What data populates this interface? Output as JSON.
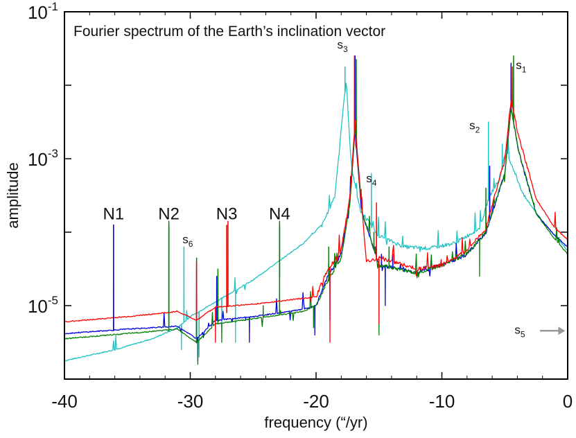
{
  "chart_data": {
    "type": "line",
    "title": "Fourier spectrum of the Earth’s inclination vector",
    "xlabel": "frequency (“/yr)",
    "ylabel": "amplitude",
    "xlim": [
      -40,
      0
    ],
    "ylim_log10": [
      -6,
      -1
    ],
    "x_ticks": [
      -40,
      -30,
      -20,
      -10,
      0
    ],
    "x_tick_labels": [
      "-40",
      "-30",
      "-20",
      "-10",
      "0"
    ],
    "y_ticks": [
      {
        "base": "10",
        "exp": "-1",
        "value": -1
      },
      {
        "base": "10",
        "exp": "-3",
        "value": -3
      },
      {
        "base": "10",
        "exp": "-5",
        "value": -5
      }
    ],
    "grid": false,
    "colors": {
      "red": "#ff0000",
      "blue": "#0000e0",
      "green": "#008000",
      "cyan": "#22c0c0",
      "axis": "#000000",
      "arrow": "#999999"
    },
    "series": [
      {
        "name": "blue",
        "color": "#0000e0",
        "background": [
          [
            -40,
            -5.38
          ],
          [
            -35,
            -5.32
          ],
          [
            -31,
            -5.28
          ],
          [
            -29.5,
            -5.45
          ],
          [
            -28,
            -5.2
          ],
          [
            -25,
            -5.15
          ],
          [
            -21,
            -5.05
          ],
          [
            -20,
            -5.0
          ],
          [
            -19.2,
            -4.65
          ],
          [
            -18,
            -4.3
          ],
          [
            -17.3,
            -3.6
          ],
          [
            -16.9,
            -2.6
          ],
          [
            -16.4,
            -3.7
          ],
          [
            -15,
            -4.45
          ],
          [
            -12,
            -4.55
          ],
          [
            -10,
            -4.45
          ],
          [
            -8,
            -4.3
          ],
          [
            -6.5,
            -4.0
          ],
          [
            -5,
            -3.2
          ],
          [
            -4.5,
            -2.3
          ],
          [
            -3.9,
            -2.9
          ],
          [
            -2.5,
            -3.75
          ],
          [
            -1,
            -4.05
          ],
          [
            0,
            -4.2
          ]
        ],
        "peaks": [
          [
            -36.1,
            -3.9
          ],
          [
            -29.5,
            -4.5
          ],
          [
            -27.9,
            -4.6
          ],
          [
            -25.6,
            -5.2
          ],
          [
            -19,
            -4.4
          ],
          [
            -16.9,
            -1.6
          ],
          [
            -15.3,
            -4.2
          ],
          [
            -14.8,
            -4.3
          ],
          [
            -13.9,
            -4.3
          ],
          [
            -6.2,
            -3.1
          ],
          [
            -4.5,
            -1.7
          ]
        ],
        "dips": [
          [
            -29.4,
            -5.75
          ],
          [
            -25.3,
            -5.5
          ],
          [
            -20.1,
            -5.4
          ],
          [
            -18.9,
            -5.2
          ],
          [
            -14.5,
            -5.0
          ]
        ]
      },
      {
        "name": "green",
        "color": "#008000",
        "background": [
          [
            -40,
            -5.45
          ],
          [
            -35,
            -5.38
          ],
          [
            -31,
            -5.32
          ],
          [
            -29.5,
            -5.5
          ],
          [
            -28,
            -5.25
          ],
          [
            -25,
            -5.18
          ],
          [
            -21,
            -5.08
          ],
          [
            -20,
            -5.0
          ],
          [
            -19.2,
            -4.7
          ],
          [
            -18,
            -4.35
          ],
          [
            -17.3,
            -3.6
          ],
          [
            -16.9,
            -2.55
          ],
          [
            -16.4,
            -3.7
          ],
          [
            -15,
            -4.45
          ],
          [
            -12,
            -4.55
          ],
          [
            -10,
            -4.45
          ],
          [
            -8,
            -4.3
          ],
          [
            -6.5,
            -4.0
          ],
          [
            -5,
            -3.2
          ],
          [
            -4.5,
            -2.3
          ],
          [
            -3.9,
            -2.9
          ],
          [
            -2.5,
            -3.75
          ],
          [
            -1,
            -4.1
          ],
          [
            0,
            -4.3
          ]
        ],
        "peaks": [
          [
            -31.7,
            -3.85
          ],
          [
            -29.5,
            -4.35
          ],
          [
            -27.8,
            -4.5
          ],
          [
            -24.2,
            -5.0
          ],
          [
            -22.9,
            -3.85
          ],
          [
            -19,
            -4.2
          ],
          [
            -16.8,
            -1.65
          ],
          [
            -15.4,
            -4.0
          ],
          [
            -14.2,
            -4.2
          ],
          [
            -6.5,
            -3.4
          ],
          [
            -4.3,
            -1.6
          ]
        ],
        "dips": [
          [
            -29.4,
            -5.8
          ],
          [
            -27.5,
            -5.5
          ],
          [
            -20.2,
            -5.3
          ],
          [
            -15.0,
            -5.4
          ],
          [
            -7.0,
            -4.6
          ]
        ]
      },
      {
        "name": "red",
        "color": "#ff0000",
        "background": [
          [
            -40,
            -5.22
          ],
          [
            -35,
            -5.15
          ],
          [
            -31,
            -5.08
          ],
          [
            -29.5,
            -5.2
          ],
          [
            -28,
            -5.02
          ],
          [
            -25,
            -4.98
          ],
          [
            -21,
            -4.9
          ],
          [
            -20,
            -4.88
          ],
          [
            -19.2,
            -4.55
          ],
          [
            -18,
            -4.25
          ],
          [
            -17.3,
            -3.5
          ],
          [
            -16.9,
            -2.5
          ],
          [
            -16.4,
            -3.6
          ],
          [
            -16.0,
            -4.4
          ],
          [
            -15,
            -4.35
          ],
          [
            -12,
            -4.5
          ],
          [
            -10,
            -4.45
          ],
          [
            -8,
            -4.25
          ],
          [
            -6.5,
            -3.95
          ],
          [
            -5,
            -3.0
          ],
          [
            -4.5,
            -2.2
          ],
          [
            -3.9,
            -2.7
          ],
          [
            -2.5,
            -3.55
          ],
          [
            -1,
            -3.95
          ],
          [
            0,
            -4.1
          ]
        ],
        "peaks": [
          [
            -29.5,
            -4.4
          ],
          [
            -27.0,
            -3.85
          ],
          [
            -16.95,
            -1.6
          ],
          [
            -15.2,
            -3.6
          ],
          [
            -4.4,
            -1.75
          ]
        ],
        "dips": [
          [
            -28.0,
            -5.5
          ],
          [
            -18.9,
            -5.5
          ],
          [
            -15.0,
            -5.25
          ]
        ]
      },
      {
        "name": "cyan",
        "color": "#22c0c0",
        "background": [
          [
            -40,
            -5.75
          ],
          [
            -36,
            -5.6
          ],
          [
            -33,
            -5.45
          ],
          [
            -31,
            -5.3
          ],
          [
            -30,
            -5.15
          ],
          [
            -28,
            -4.95
          ],
          [
            -25,
            -4.65
          ],
          [
            -23,
            -4.4
          ],
          [
            -21,
            -4.15
          ],
          [
            -19.5,
            -3.9
          ],
          [
            -18.5,
            -3.5
          ],
          [
            -17.9,
            -2.4
          ],
          [
            -17.6,
            -1.95
          ],
          [
            -17.2,
            -3.1
          ],
          [
            -16.5,
            -3.7
          ],
          [
            -15,
            -4.05
          ],
          [
            -13,
            -4.2
          ],
          [
            -11,
            -4.22
          ],
          [
            -9,
            -4.15
          ],
          [
            -7,
            -3.95
          ],
          [
            -6.2,
            -3.5
          ],
          [
            -5.5,
            -3.3
          ],
          [
            -4.9,
            -2.9
          ],
          [
            -4.4,
            -3.1
          ],
          [
            -3.5,
            -3.5
          ],
          [
            -2,
            -3.85
          ],
          [
            -1,
            -4.05
          ],
          [
            0,
            -4.25
          ]
        ],
        "peaks": [
          [
            -30.5,
            -4.2
          ],
          [
            -17.7,
            -1.75
          ],
          [
            -15.6,
            -3.2
          ],
          [
            -6.3,
            -2.5
          ],
          [
            -5.2,
            -2.8
          ]
        ],
        "dips": [
          [
            -30.7,
            -5.6
          ],
          [
            -29.3,
            -5.7
          ],
          [
            -27.5,
            -5.3
          ],
          [
            -26.4,
            -5.5
          ]
        ]
      }
    ],
    "markers": [
      {
        "label": "N1",
        "x": -36.1,
        "color": "#0000e0",
        "top": -3.9,
        "bottom": -5.3
      },
      {
        "label": "N2",
        "x": -31.7,
        "color": "#008000",
        "top": -3.9,
        "bottom": -5.35
      },
      {
        "label": "N3",
        "x": -27.1,
        "color": "#e00000",
        "top": -3.9,
        "bottom": -5.1
      },
      {
        "label": "N4",
        "x": -22.9,
        "color": "#008000",
        "top": -3.9,
        "bottom": -4.6
      }
    ],
    "annotations": [
      {
        "base": "s",
        "sub": "1",
        "x": -3.7,
        "y": -1.78
      },
      {
        "base": "s",
        "sub": "2",
        "x": -7.4,
        "y": -2.6
      },
      {
        "base": "s",
        "sub": "3",
        "x": -17.9,
        "y": -1.5
      },
      {
        "base": "s",
        "sub": "4",
        "x": -15.6,
        "y": -3.32
      },
      {
        "base": "s",
        "sub": "5",
        "x": -3.8,
        "y": -5.38
      },
      {
        "base": "s",
        "sub": "6",
        "x": -30.2,
        "y": -4.15
      }
    ],
    "s5_arrow": {
      "from_x": -2.2,
      "to_x": -0.2,
      "y": -5.38
    }
  }
}
